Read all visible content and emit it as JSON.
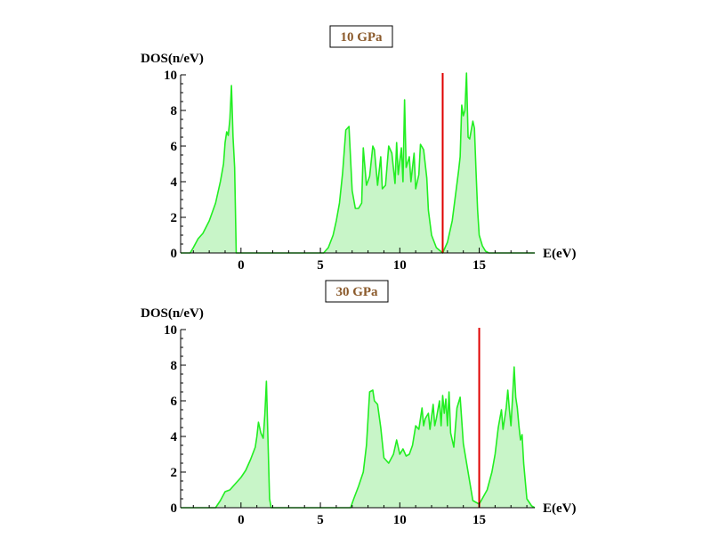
{
  "chart_data": [
    {
      "type": "area",
      "title": "10 GPa",
      "xlabel": "E(eV)",
      "ylabel": "DOS(n/eV)",
      "xlim": [
        -3.8,
        18.5
      ],
      "ylim": [
        0,
        10
      ],
      "xticks": [
        0,
        5,
        10,
        15
      ],
      "yticks": [
        0,
        2,
        4,
        6,
        8,
        10
      ],
      "fermi_level": 12.7,
      "colors": {
        "line": "#22ee22",
        "fill": "#c8f5c8",
        "fermi": "#e00000"
      },
      "series": [
        {
          "x": [
            -3.8,
            -3.2,
            -3.0,
            -2.7,
            -2.4,
            -2.0,
            -1.6,
            -1.3,
            -1.1,
            -1.0,
            -0.9,
            -0.8,
            -0.7,
            -0.6,
            -0.5,
            -0.4,
            -0.3,
            -0.28,
            -0.2,
            2.0,
            4.5,
            5.2,
            5.5,
            5.8,
            6.0,
            6.2,
            6.4,
            6.6,
            6.8,
            7.0,
            7.2,
            7.4,
            7.6,
            7.7,
            7.9,
            8.1,
            8.3,
            8.4,
            8.6,
            8.8,
            8.9,
            9.1,
            9.3,
            9.5,
            9.7,
            9.8,
            9.9,
            10.1,
            10.2,
            10.3,
            10.4,
            10.6,
            10.7,
            10.9,
            11.0,
            11.2,
            11.3,
            11.5,
            11.7,
            11.8,
            12.0,
            12.3,
            12.7,
            13.0,
            13.3,
            13.5,
            13.7,
            13.8,
            13.9,
            14.0,
            14.1,
            14.2,
            14.3,
            14.4,
            14.6,
            14.7,
            14.8,
            14.9,
            15.0,
            15.2,
            15.4,
            15.6,
            16.0,
            18.5
          ],
          "y": [
            0,
            0,
            0.3,
            0.8,
            1.1,
            1.8,
            2.8,
            4.0,
            5.0,
            6.2,
            6.8,
            6.6,
            7.5,
            9.4,
            6.5,
            4.8,
            0,
            0,
            0,
            0,
            0,
            0,
            0.3,
            1.0,
            1.8,
            2.8,
            4.5,
            6.9,
            7.1,
            3.5,
            2.5,
            2.5,
            2.8,
            5.9,
            3.8,
            4.3,
            6.0,
            5.8,
            3.8,
            5.4,
            3.6,
            3.8,
            6.0,
            5.6,
            3.9,
            6.2,
            4.4,
            5.9,
            4.0,
            8.6,
            4.8,
            5.4,
            4.0,
            5.6,
            3.6,
            4.4,
            6.1,
            5.8,
            4.2,
            2.4,
            1.0,
            0.3,
            0,
            0.6,
            1.8,
            3.2,
            4.6,
            5.4,
            8.3,
            7.7,
            8.0,
            10.1,
            6.5,
            6.4,
            7.4,
            7.0,
            4.6,
            2.4,
            1.0,
            0.4,
            0.1,
            0,
            0,
            0
          ]
        }
      ]
    },
    {
      "type": "area",
      "title": "30 GPa",
      "xlabel": "E(eV)",
      "ylabel": "DOS(n/eV)",
      "xlim": [
        -3.8,
        18.5
      ],
      "ylim": [
        0,
        10
      ],
      "xticks": [
        0,
        5,
        10,
        15
      ],
      "yticks": [
        0,
        2,
        4,
        6,
        8,
        10
      ],
      "fermi_level": 15.0,
      "colors": {
        "line": "#22ee22",
        "fill": "#c8f5c8",
        "fermi": "#e00000"
      },
      "series": [
        {
          "x": [
            -3.8,
            -1.6,
            -1.3,
            -1.0,
            -0.7,
            -0.4,
            0.0,
            0.3,
            0.6,
            0.9,
            1.0,
            1.1,
            1.25,
            1.4,
            1.5,
            1.6,
            1.7,
            1.8,
            1.9,
            2.0,
            3.0,
            5.0,
            6.9,
            7.1,
            7.4,
            7.7,
            7.9,
            8.1,
            8.3,
            8.4,
            8.6,
            8.8,
            9.0,
            9.3,
            9.6,
            9.8,
            10.0,
            10.2,
            10.4,
            10.6,
            10.8,
            11.0,
            11.2,
            11.4,
            11.5,
            11.6,
            11.8,
            11.9,
            12.1,
            12.2,
            12.3,
            12.5,
            12.6,
            12.7,
            12.8,
            12.9,
            13.0,
            13.1,
            13.2,
            13.4,
            13.6,
            13.8,
            14.0,
            14.3,
            14.6,
            15.0,
            15.5,
            15.8,
            16.0,
            16.2,
            16.4,
            16.5,
            16.6,
            16.7,
            16.8,
            16.9,
            17.0,
            17.1,
            17.2,
            17.3,
            17.4,
            17.5,
            17.6,
            17.7,
            17.8,
            18.0,
            18.3,
            18.5
          ],
          "y": [
            0,
            0,
            0.4,
            0.9,
            1.0,
            1.3,
            1.7,
            2.1,
            2.7,
            3.4,
            4.0,
            4.8,
            4.2,
            3.9,
            5.2,
            7.1,
            3.8,
            0.5,
            0,
            0,
            0,
            0,
            0,
            0.5,
            1.2,
            2.0,
            3.5,
            6.5,
            6.6,
            6.0,
            5.8,
            4.5,
            2.8,
            2.5,
            3.0,
            3.8,
            3.0,
            3.3,
            2.9,
            3.0,
            3.5,
            4.6,
            4.4,
            5.6,
            4.6,
            5.0,
            5.3,
            4.4,
            5.8,
            4.6,
            5.0,
            6.0,
            4.6,
            6.3,
            5.3,
            6.1,
            4.6,
            6.5,
            4.2,
            3.4,
            5.6,
            6.2,
            3.6,
            2.0,
            0.4,
            0.2,
            1.0,
            2.0,
            3.0,
            4.5,
            5.5,
            4.4,
            5.0,
            5.6,
            6.6,
            5.5,
            4.6,
            6.2,
            7.9,
            6.2,
            5.6,
            4.6,
            3.8,
            4.1,
            2.5,
            0.5,
            0.1,
            0
          ]
        }
      ]
    }
  ]
}
